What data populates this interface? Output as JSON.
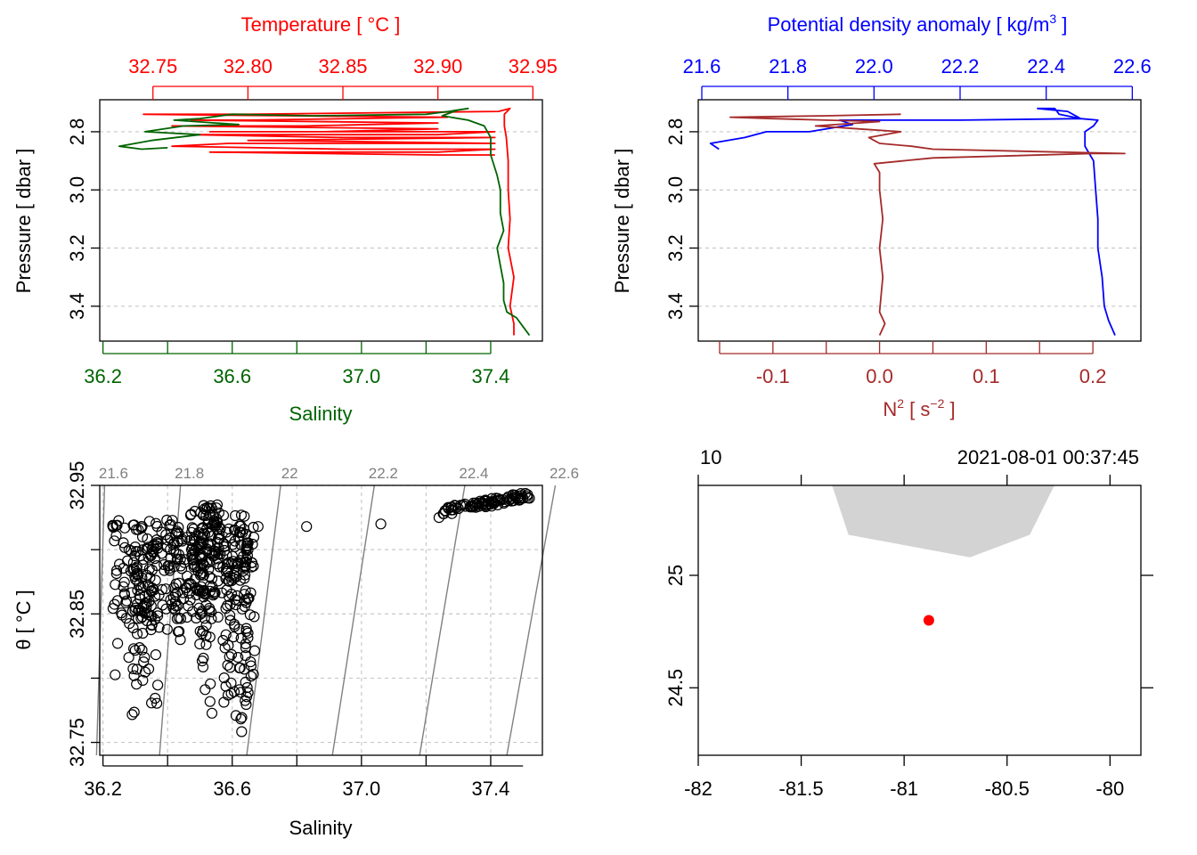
{
  "colors": {
    "temperature": "#ff0000",
    "salinity": "#006400",
    "density": "#0000ff",
    "n2": "#a52a2a",
    "grid": "#c8c8c8",
    "isopycnal": "#808080",
    "coast": "#d3d3d3",
    "station": "#ff0000"
  },
  "chart_data": [
    {
      "type": "line",
      "panel": "temperature-salinity-profile",
      "top_axis_label": "Temperature [ °C ]",
      "bottom_axis_label": "Salinity",
      "ylabel": "Pressure [ dbar ]",
      "y_reversed": true,
      "ylim": [
        3.52,
        2.69
      ],
      "yticks": [
        "2.8",
        "3.0",
        "3.2",
        "3.4"
      ],
      "top_xlim": [
        32.722,
        32.955
      ],
      "top_ticks": [
        "32.75",
        "32.80",
        "32.85",
        "32.90",
        "32.95"
      ],
      "bottom_xlim": [
        36.19,
        37.56
      ],
      "bottom_ticks": [
        "36.2",
        "36.6",
        "37.0",
        "37.4"
      ],
      "grid": true,
      "series": [
        {
          "name": "Temperature",
          "x_axis": "top",
          "points": [
            [
              32.94,
              3.5
            ],
            [
              32.94,
              3.46
            ],
            [
              32.938,
              3.4
            ],
            [
              32.94,
              3.3
            ],
            [
              32.937,
              3.2
            ],
            [
              32.938,
              3.1
            ],
            [
              32.937,
              3.0
            ],
            [
              32.937,
              2.9
            ],
            [
              32.936,
              2.82
            ],
            [
              32.935,
              2.78
            ],
            [
              32.935,
              2.74
            ],
            [
              32.938,
              2.72
            ],
            [
              32.932,
              2.73
            ],
            [
              32.8,
              2.74
            ],
            [
              32.745,
              2.74
            ],
            [
              32.82,
              2.745
            ],
            [
              32.905,
              2.75
            ],
            [
              32.8,
              2.76
            ],
            [
              32.77,
              2.76
            ],
            [
              32.9,
              2.77
            ],
            [
              32.83,
              2.78
            ],
            [
              32.76,
              2.78
            ],
            [
              32.9,
              2.79
            ],
            [
              32.84,
              2.8
            ],
            [
              32.78,
              2.8
            ],
            [
              32.93,
              2.8
            ],
            [
              32.9,
              2.81
            ],
            [
              32.77,
              2.81
            ],
            [
              32.85,
              2.82
            ],
            [
              32.93,
              2.82
            ],
            [
              32.8,
              2.83
            ],
            [
              32.87,
              2.835
            ],
            [
              32.93,
              2.84
            ],
            [
              32.79,
              2.84
            ],
            [
              32.76,
              2.85
            ],
            [
              32.85,
              2.86
            ],
            [
              32.93,
              2.86
            ],
            [
              32.9,
              2.87
            ],
            [
              32.78,
              2.87
            ],
            [
              32.9,
              2.88
            ],
            [
              32.93,
              2.88
            ]
          ]
        },
        {
          "name": "Salinity",
          "x_axis": "bottom",
          "points": [
            [
              37.52,
              3.5
            ],
            [
              37.5,
              3.47
            ],
            [
              37.48,
              3.44
            ],
            [
              37.45,
              3.42
            ],
            [
              37.44,
              3.38
            ],
            [
              37.44,
              3.32
            ],
            [
              37.43,
              3.26
            ],
            [
              37.42,
              3.2
            ],
            [
              37.44,
              3.14
            ],
            [
              37.43,
              3.08
            ],
            [
              37.43,
              3.0
            ],
            [
              37.42,
              2.95
            ],
            [
              37.4,
              2.88
            ],
            [
              37.4,
              2.82
            ],
            [
              37.38,
              2.78
            ],
            [
              37.33,
              2.76
            ],
            [
              37.25,
              2.745
            ],
            [
              37.3,
              2.725
            ],
            [
              37.33,
              2.72
            ],
            [
              37.27,
              2.73
            ],
            [
              37.2,
              2.74
            ],
            [
              36.85,
              2.745
            ],
            [
              36.6,
              2.74
            ],
            [
              36.5,
              2.755
            ],
            [
              36.42,
              2.76
            ],
            [
              36.55,
              2.77
            ],
            [
              36.62,
              2.775
            ],
            [
              36.45,
              2.78
            ],
            [
              36.33,
              2.8
            ],
            [
              36.5,
              2.81
            ],
            [
              36.35,
              2.83
            ],
            [
              36.25,
              2.85
            ],
            [
              36.32,
              2.86
            ],
            [
              36.4,
              2.855
            ]
          ]
        }
      ]
    },
    {
      "type": "line",
      "panel": "density-n2-profile",
      "top_axis_label": "Potential density anomaly [ kg/m³ ]",
      "bottom_axis_label": "N² [ s⁻² ]",
      "ylabel": "Pressure [ dbar ]",
      "y_reversed": true,
      "ylim": [
        3.52,
        2.69
      ],
      "yticks": [
        "2.8",
        "3.0",
        "3.2",
        "3.4"
      ],
      "top_xlim": [
        21.6,
        22.62
      ],
      "top_ticks": [
        "21.6",
        "21.8",
        "22.0",
        "22.2",
        "22.4",
        "22.6"
      ],
      "bottom_xlim": [
        -0.17,
        0.245
      ],
      "bottom_ticks": [
        "-0.1",
        "0.0",
        "0.1",
        "0.2"
      ],
      "grid": true,
      "series": [
        {
          "name": "Potential density anomaly",
          "x_axis": "top",
          "points": [
            [
              22.56,
              3.5
            ],
            [
              22.545,
              3.45
            ],
            [
              22.535,
              3.4
            ],
            [
              22.53,
              3.3
            ],
            [
              22.52,
              3.2
            ],
            [
              22.52,
              3.1
            ],
            [
              22.515,
              3.0
            ],
            [
              22.51,
              2.9
            ],
            [
              22.49,
              2.85
            ],
            [
              22.49,
              2.8
            ],
            [
              22.51,
              2.78
            ],
            [
              22.52,
              2.76
            ],
            [
              22.48,
              2.755
            ],
            [
              22.43,
              2.74
            ],
            [
              22.42,
              2.72
            ],
            [
              22.38,
              2.72
            ],
            [
              22.45,
              2.73
            ],
            [
              22.48,
              2.755
            ],
            [
              22.2,
              2.76
            ],
            [
              21.92,
              2.76
            ],
            [
              21.95,
              2.775
            ],
            [
              21.85,
              2.8
            ],
            [
              21.75,
              2.8
            ],
            [
              21.7,
              2.82
            ],
            [
              21.62,
              2.84
            ],
            [
              21.64,
              2.86
            ]
          ]
        },
        {
          "name": "N²",
          "x_axis": "bottom",
          "points": [
            [
              0.0,
              3.5
            ],
            [
              0.005,
              3.46
            ],
            [
              0.0,
              3.42
            ],
            [
              0.003,
              3.3
            ],
            [
              0.0,
              3.2
            ],
            [
              0.003,
              3.1
            ],
            [
              0.0,
              3.0
            ],
            [
              0.0,
              2.94
            ],
            [
              -0.005,
              2.91
            ],
            [
              0.05,
              2.89
            ],
            [
              0.2,
              2.875
            ],
            [
              0.23,
              2.875
            ],
            [
              0.05,
              2.86
            ],
            [
              0.03,
              2.85
            ],
            [
              0.0,
              2.84
            ],
            [
              -0.01,
              2.82
            ],
            [
              0.02,
              2.8
            ],
            [
              -0.02,
              2.79
            ],
            [
              -0.06,
              2.78
            ],
            [
              0.0,
              2.765
            ],
            [
              -0.05,
              2.76
            ],
            [
              -0.1,
              2.755
            ],
            [
              -0.14,
              2.75
            ],
            [
              -0.05,
              2.745
            ],
            [
              0.02,
              2.74
            ]
          ]
        }
      ]
    },
    {
      "type": "scatter",
      "panel": "ts-diagram",
      "xlabel": "Salinity",
      "ylabel": "θ [ °C ]",
      "xlim": [
        36.19,
        37.56
      ],
      "ylim": [
        32.74,
        32.95
      ],
      "xticks": [
        "36.2",
        "36.6",
        "37.0",
        "37.4"
      ],
      "yticks": [
        "32.75",
        "32.85",
        "32.95"
      ],
      "isopycnal_labels": [
        "21.6",
        "21.8",
        "22",
        "22.2",
        "22.4",
        "22.6"
      ],
      "isopycnal_bottom_salinity": [
        36.18,
        36.375,
        36.645,
        36.91,
        37.18,
        37.45
      ],
      "isopycnal_top_salinity": [
        36.205,
        36.44,
        36.75,
        37.04,
        37.32,
        37.6
      ],
      "grid": true,
      "clusters": [
        {
          "s_min": 36.23,
          "s_max": 36.33,
          "t_min": 32.8,
          "t_max": 32.925
        },
        {
          "s_min": 36.29,
          "s_max": 36.37,
          "t_min": 32.765,
          "t_max": 32.905
        },
        {
          "s_min": 36.33,
          "s_max": 36.44,
          "t_min": 32.83,
          "t_max": 32.925
        },
        {
          "s_min": 36.42,
          "s_max": 36.52,
          "t_min": 32.82,
          "t_max": 32.915
        },
        {
          "s_min": 36.47,
          "s_max": 36.56,
          "t_min": 32.86,
          "t_max": 32.935
        },
        {
          "s_min": 36.5,
          "s_max": 36.58,
          "t_min": 32.77,
          "t_max": 32.935
        },
        {
          "s_min": 36.58,
          "s_max": 36.65,
          "t_min": 32.77,
          "t_max": 32.93
        },
        {
          "s_min": 36.59,
          "s_max": 36.67,
          "t_min": 32.745,
          "t_max": 32.92
        }
      ],
      "points": [
        [
          36.68,
          32.918
        ],
        [
          36.83,
          32.918
        ],
        [
          37.06,
          32.92
        ],
        [
          37.24,
          32.925
        ],
        [
          37.26,
          32.93
        ],
        [
          37.3,
          32.932
        ],
        [
          37.34,
          32.934
        ],
        [
          37.38,
          32.936
        ],
        [
          37.42,
          32.938
        ],
        [
          37.46,
          32.939
        ],
        [
          37.5,
          32.94
        ],
        [
          37.52,
          32.94
        ],
        [
          37.28,
          32.928
        ],
        [
          37.36,
          32.935
        ]
      ]
    },
    {
      "type": "map",
      "panel": "station-map",
      "top_left_label": "10",
      "top_right_label": "2021-08-01 00:37:45",
      "lon_lim": [
        -82.0,
        -79.85
      ],
      "lat_lim": [
        24.2,
        25.4
      ],
      "xticks": [
        "-82",
        "-81.5",
        "-81",
        "-80.5",
        "-80"
      ],
      "yticks": [
        "24.5",
        "25"
      ],
      "station": {
        "lon": -80.88,
        "lat": 24.8
      },
      "coast_polygon": [
        [
          -81.35,
          25.4
        ],
        [
          -81.27,
          25.18
        ],
        [
          -80.68,
          25.08
        ],
        [
          -80.39,
          25.18
        ],
        [
          -80.27,
          25.4
        ]
      ]
    }
  ]
}
